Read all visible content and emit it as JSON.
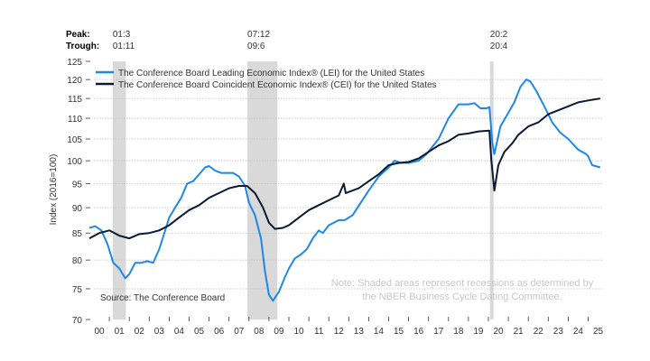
{
  "chart_data": {
    "type": "line",
    "title": "",
    "ylabel": "Index (2016=100)",
    "xlabel": "",
    "y_scale": "log",
    "ylim": [
      70,
      125
    ],
    "y_ticks": [
      70,
      75,
      80,
      85,
      90,
      95,
      100,
      105,
      110,
      115,
      120,
      125
    ],
    "x_range": [
      2000,
      2026
    ],
    "x_tick_labels": [
      "00",
      "01",
      "02",
      "03",
      "04",
      "05",
      "06",
      "07",
      "08",
      "09",
      "10",
      "11",
      "12",
      "13",
      "14",
      "15",
      "16",
      "17",
      "18",
      "19",
      "20",
      "21",
      "22",
      "23",
      "24",
      "25"
    ],
    "grid": "horizontal dotted",
    "legend_placement": "top-left",
    "peak_label": "Peak:",
    "trough_label": "Trough:",
    "recessions": [
      {
        "peak": "01:3",
        "trough": "01:11",
        "start": 2001.17,
        "end": 2001.83
      },
      {
        "peak": "07:12",
        "trough": "09:6",
        "start": 2007.92,
        "end": 2009.42
      },
      {
        "peak": "20:2",
        "trough": "20:4",
        "start": 2020.08,
        "end": 2020.25
      }
    ],
    "source": "Source: The Conference Board",
    "note": [
      "Note: Shaded areas represent recessions as determined by",
      "the NBER Business Cycle Dating Committee."
    ],
    "series": [
      {
        "name": "The Conference Board Leading Economic Index® (LEI) for the United States",
        "color": "#1e88e5",
        "x": [
          2000.0,
          2000.3,
          2000.6,
          2000.9,
          2001.2,
          2001.5,
          2001.8,
          2002.0,
          2002.3,
          2002.6,
          2002.9,
          2003.2,
          2003.5,
          2003.8,
          2004.0,
          2004.3,
          2004.6,
          2004.9,
          2005.2,
          2005.5,
          2005.8,
          2006.0,
          2006.3,
          2006.6,
          2006.9,
          2007.2,
          2007.5,
          2007.8,
          2008.0,
          2008.3,
          2008.6,
          2008.8,
          2009.0,
          2009.2,
          2009.5,
          2009.8,
          2010.0,
          2010.3,
          2010.6,
          2010.9,
          2011.2,
          2011.5,
          2011.7,
          2012.0,
          2012.5,
          2012.8,
          2013.2,
          2013.6,
          2014.0,
          2014.5,
          2015.0,
          2015.3,
          2015.6,
          2016.0,
          2016.5,
          2016.9,
          2017.5,
          2018.0,
          2018.5,
          2019.0,
          2019.3,
          2019.6,
          2019.9,
          2020.05,
          2020.2,
          2020.3,
          2020.6,
          2020.9,
          2021.3,
          2021.6,
          2021.9,
          2022.1,
          2022.4,
          2022.8,
          2023.2,
          2023.6,
          2024.0,
          2024.5,
          2024.9,
          2025.0,
          2025.2,
          2025.6
        ],
        "y": [
          86.0,
          86.3,
          85.5,
          83.0,
          79.5,
          78.5,
          76.8,
          77.5,
          79.5,
          79.5,
          79.8,
          79.5,
          82.0,
          85.5,
          88.0,
          90.0,
          92.0,
          95.0,
          95.5,
          97.0,
          98.5,
          98.8,
          97.8,
          97.3,
          97.3,
          97.3,
          96.5,
          94.5,
          91.0,
          88.5,
          84.0,
          78.0,
          74.0,
          73.0,
          74.5,
          77.0,
          78.5,
          80.3,
          81.0,
          82.0,
          84.0,
          85.5,
          85.0,
          86.5,
          87.5,
          87.5,
          88.5,
          91.0,
          93.5,
          96.5,
          98.5,
          100.0,
          99.5,
          99.5,
          100.0,
          101.5,
          105.0,
          110.0,
          113.5,
          113.5,
          113.8,
          112.5,
          112.5,
          112.8,
          104.0,
          101.5,
          108.0,
          110.5,
          114.0,
          118.0,
          120.0,
          119.5,
          117.0,
          113.0,
          109.0,
          106.5,
          105.0,
          102.5,
          101.5,
          101.0,
          99.0,
          98.5
        ]
      },
      {
        "name": "The Conference Board Coincident Economic Index® (CEI) for the United States",
        "color": "#0b1a33",
        "x": [
          2000.0,
          2000.5,
          2001.0,
          2001.5,
          2002.0,
          2002.5,
          2003.0,
          2003.5,
          2004.0,
          2004.5,
          2005.0,
          2005.5,
          2006.0,
          2006.5,
          2007.0,
          2007.5,
          2007.9,
          2008.3,
          2008.7,
          2009.0,
          2009.3,
          2009.7,
          2010.0,
          2010.5,
          2011.0,
          2011.5,
          2012.0,
          2012.5,
          2012.75,
          2012.85,
          2013.5,
          2014.0,
          2014.5,
          2015.0,
          2015.5,
          2016.0,
          2016.5,
          2017.0,
          2017.5,
          2018.0,
          2018.5,
          2019.0,
          2019.5,
          2020.05,
          2020.15,
          2020.3,
          2020.5,
          2020.8,
          2021.2,
          2021.5,
          2022.0,
          2022.5,
          2023.0,
          2023.5,
          2024.0,
          2024.5,
          2025.0,
          2025.6
        ],
        "y": [
          84.0,
          85.0,
          85.5,
          84.5,
          84.0,
          84.8,
          85.0,
          85.5,
          86.5,
          88.0,
          89.5,
          90.5,
          92.0,
          93.0,
          94.0,
          94.5,
          94.5,
          93.0,
          90.0,
          87.0,
          85.8,
          86.0,
          86.5,
          88.0,
          89.5,
          90.5,
          91.5,
          92.5,
          95.0,
          93.0,
          94.0,
          95.5,
          97.0,
          99.0,
          99.5,
          99.7,
          100.5,
          102.0,
          103.5,
          104.5,
          106.0,
          106.3,
          106.8,
          107.0,
          100.0,
          93.5,
          99.0,
          102.0,
          104.0,
          106.0,
          108.0,
          109.0,
          111.0,
          112.0,
          113.0,
          114.0,
          114.5,
          115.0
        ]
      }
    ]
  }
}
